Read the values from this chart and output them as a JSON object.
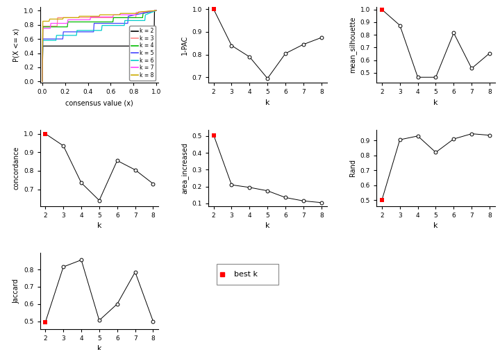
{
  "k_values": [
    2,
    3,
    4,
    5,
    6,
    7,
    8
  ],
  "one_pac": [
    1.0,
    0.84,
    0.79,
    0.695,
    0.805,
    0.845,
    0.875
  ],
  "mean_silhouette": [
    1.0,
    0.875,
    0.465,
    0.465,
    0.815,
    0.535,
    0.655
  ],
  "concordance": [
    1.0,
    0.935,
    0.735,
    0.64,
    0.855,
    0.805,
    0.73
  ],
  "area_increased": [
    0.505,
    0.21,
    0.195,
    0.175,
    0.135,
    0.115,
    0.105
  ],
  "rand": [
    0.5,
    0.905,
    0.93,
    0.82,
    0.91,
    0.945,
    0.935
  ],
  "jaccard": [
    0.495,
    0.815,
    0.855,
    0.505,
    0.6,
    0.785,
    0.5
  ],
  "best_k": 2,
  "ecdf_colors": [
    "#000000",
    "#FF8888",
    "#00BB00",
    "#4444FF",
    "#00CCCC",
    "#FF44FF",
    "#CCAA00"
  ],
  "ecdf_labels": [
    "k = 2",
    "k = 3",
    "k = 4",
    "k = 5",
    "k = 6",
    "k = 7",
    "k = 8"
  ],
  "best_color": "#FF0000",
  "bg_color": "#FFFFFF"
}
